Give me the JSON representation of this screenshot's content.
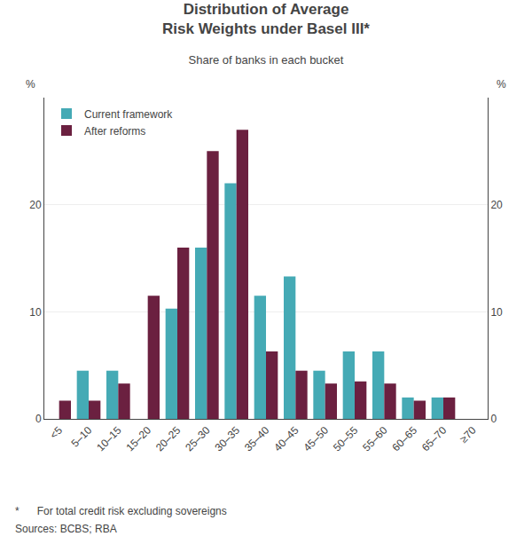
{
  "chart_data": {
    "type": "bar",
    "title": "Distribution of Average\nRisk Weights under Basel III*",
    "subtitle": "Share of banks in each bucket",
    "ylabel": "%",
    "y2label": "%",
    "categories": [
      "<5",
      "5–10",
      "10–15",
      "15–20",
      "20–25",
      "25–30",
      "30–35",
      "35–40",
      "40–45",
      "45–50",
      "50–55",
      "55–60",
      "60–65",
      "65–70",
      "≥70"
    ],
    "series": [
      {
        "name": "Current framework",
        "color": "#45aab5",
        "values": [
          0,
          4.5,
          4.5,
          0,
          10.3,
          16.0,
          22.0,
          11.5,
          13.3,
          4.5,
          6.3,
          6.3,
          2.0,
          2.0,
          0
        ]
      },
      {
        "name": "After reforms",
        "color": "#6b2040",
        "values": [
          1.7,
          1.7,
          3.3,
          11.5,
          16.0,
          25.0,
          27.0,
          6.3,
          4.5,
          3.3,
          3.5,
          3.3,
          1.7,
          2.0,
          0
        ]
      }
    ],
    "ylim": [
      0,
      30
    ],
    "yticks": [
      0,
      10,
      20
    ],
    "y2lim": [
      0,
      30
    ],
    "y2ticks": [
      0,
      10,
      20
    ],
    "grid": true,
    "legend": "upper left",
    "annotations": [
      "*      For total credit risk excluding sovereigns",
      "Sources: BCBS; RBA"
    ]
  }
}
